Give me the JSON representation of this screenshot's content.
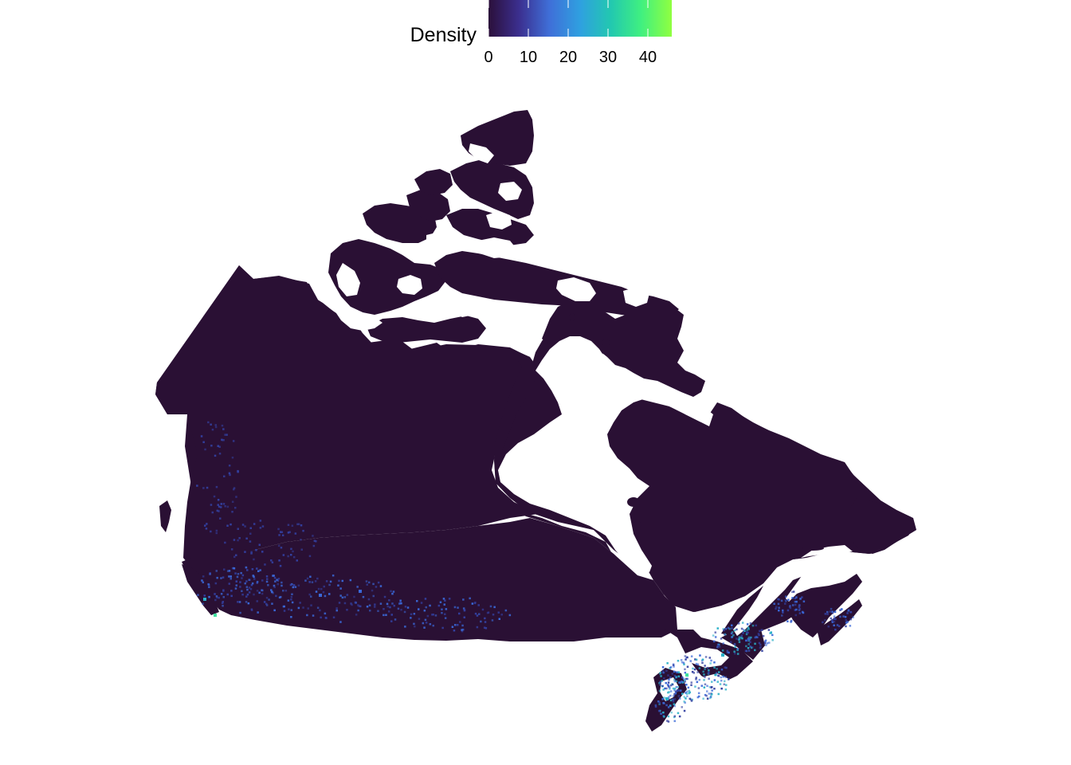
{
  "legend": {
    "title": "Density",
    "ticks": [
      0,
      10,
      20,
      30,
      40
    ],
    "range": [
      0,
      46
    ],
    "palette": [
      "#2b0f3a",
      "#3b2f8f",
      "#3f6fd8",
      "#2fa0e0",
      "#22c8b0",
      "#40f080",
      "#90ff40"
    ]
  },
  "map": {
    "background_color": "#2a1034",
    "water_color": "#ffffff",
    "hotspot_colors": [
      "#3340a0",
      "#3a68d8",
      "#2ab0c8",
      "#40e0a0"
    ]
  }
}
